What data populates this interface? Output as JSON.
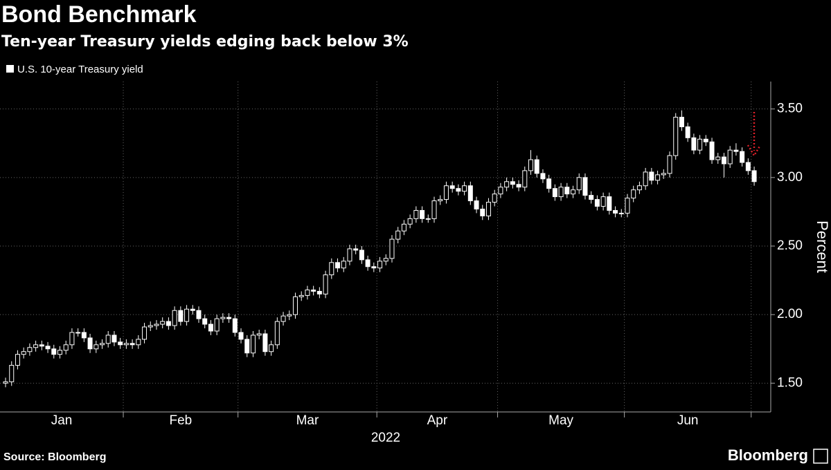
{
  "chart_data": {
    "type": "candlestick",
    "title": "Bond Benchmark",
    "subtitle": "Ten-year Treasury yields edging back below 3%",
    "y_axis_label": "Percent",
    "x_axis_label": "2022",
    "source": "Source: Bloomberg",
    "brand": "Bloomberg",
    "x_labels": [
      "Jan",
      "Feb",
      "Mar",
      "Apr",
      "May",
      "Jun"
    ],
    "xlim": [
      -0.92,
      126.4
    ],
    "xticks": [
      19.5,
      38.5,
      61.5,
      81.5,
      102.5,
      123.5
    ],
    "ylim": [
      1.29,
      3.7
    ],
    "yticks": [
      {
        "value": 1.5,
        "label": "1.50"
      },
      {
        "value": 2,
        "label": "2.00"
      },
      {
        "value": 2.5,
        "label": "2.50"
      },
      {
        "value": 3,
        "label": "3.00"
      },
      {
        "value": 3.5,
        "label": "3.50"
      }
    ],
    "grid": true,
    "series": [
      {
        "name": "U.S. 10-year Treasury yield",
        "color": "#ffffff",
        "open": [
          1.5,
          1.51,
          1.63,
          1.71,
          1.73,
          1.76,
          1.78,
          1.77,
          1.75,
          1.71,
          1.74,
          1.78,
          1.87,
          1.87,
          1.83,
          1.75,
          1.78,
          1.79,
          1.85,
          1.8,
          1.78,
          1.79,
          1.78,
          1.82,
          1.91,
          1.92,
          1.93,
          1.95,
          1.92,
          2.03,
          1.95,
          2.04,
          2.03,
          1.97,
          1.93,
          1.88,
          1.97,
          1.98,
          1.97,
          1.87,
          1.82,
          1.72,
          1.85,
          1.86,
          1.73,
          1.78,
          1.95,
          1.99,
          2.0,
          2.13,
          2.14,
          2.18,
          2.17,
          2.15,
          2.29,
          2.38,
          2.34,
          2.39,
          2.48,
          2.47,
          2.4,
          2.35,
          2.34,
          2.39,
          2.41,
          2.55,
          2.61,
          2.66,
          2.7,
          2.76,
          2.7,
          2.7,
          2.83,
          2.84,
          2.94,
          2.92,
          2.9,
          2.94,
          2.83,
          2.77,
          2.72,
          2.82,
          2.88,
          2.93,
          2.97,
          2.95,
          2.93,
          3.05,
          3.13,
          3.03,
          2.99,
          2.92,
          2.86,
          2.93,
          2.88,
          2.91,
          3.0,
          2.87,
          2.84,
          2.79,
          2.86,
          2.76,
          2.74,
          2.74,
          2.85,
          2.91,
          2.94,
          3.04,
          2.98,
          3.02,
          3.03,
          3.16,
          3.44,
          3.37,
          3.29,
          3.2,
          3.28,
          3.26,
          3.13,
          3.15,
          3.1,
          3.2,
          3.19,
          3.11,
          3.05
        ],
        "high": [
          1.54,
          1.66,
          1.74,
          1.76,
          1.79,
          1.81,
          1.81,
          1.8,
          1.78,
          1.77,
          1.81,
          1.9,
          1.9,
          1.9,
          1.86,
          1.81,
          1.82,
          1.88,
          1.88,
          1.83,
          1.82,
          1.82,
          1.85,
          1.94,
          1.95,
          1.96,
          1.98,
          1.98,
          2.06,
          2.06,
          2.07,
          2.07,
          2.06,
          2.0,
          1.96,
          2.0,
          2.01,
          2.01,
          2.0,
          1.9,
          1.85,
          1.88,
          1.89,
          1.89,
          1.81,
          1.98,
          2.02,
          2.03,
          2.16,
          2.17,
          2.21,
          2.21,
          2.2,
          2.32,
          2.41,
          2.41,
          2.42,
          2.51,
          2.51,
          2.5,
          2.43,
          2.38,
          2.42,
          2.44,
          2.58,
          2.64,
          2.69,
          2.73,
          2.79,
          2.79,
          2.73,
          2.86,
          2.87,
          2.97,
          2.97,
          2.95,
          2.97,
          2.97,
          2.86,
          2.8,
          2.85,
          2.91,
          2.96,
          3.0,
          3.0,
          2.98,
          3.08,
          3.2,
          3.16,
          3.06,
          3.02,
          2.95,
          2.96,
          2.96,
          2.94,
          3.03,
          3.03,
          2.9,
          2.87,
          2.89,
          2.89,
          2.79,
          2.77,
          2.88,
          2.94,
          2.97,
          3.07,
          3.07,
          3.05,
          3.06,
          3.19,
          3.47,
          3.49,
          3.4,
          3.32,
          3.31,
          3.31,
          3.29,
          3.18,
          3.18,
          3.23,
          3.25,
          3.22,
          3.14,
          3.08
        ],
        "low": [
          1.47,
          1.48,
          1.6,
          1.68,
          1.7,
          1.73,
          1.74,
          1.72,
          1.68,
          1.68,
          1.71,
          1.75,
          1.84,
          1.8,
          1.72,
          1.72,
          1.75,
          1.76,
          1.77,
          1.75,
          1.75,
          1.75,
          1.75,
          1.79,
          1.88,
          1.89,
          1.9,
          1.89,
          1.89,
          1.92,
          1.92,
          2.0,
          1.94,
          1.9,
          1.85,
          1.85,
          1.94,
          1.94,
          1.84,
          1.79,
          1.69,
          1.69,
          1.82,
          1.7,
          1.7,
          1.75,
          1.92,
          1.96,
          1.97,
          2.1,
          2.11,
          2.14,
          2.12,
          2.12,
          2.26,
          2.31,
          2.31,
          2.36,
          2.44,
          2.37,
          2.32,
          2.31,
          2.31,
          2.36,
          2.38,
          2.52,
          2.58,
          2.63,
          2.67,
          2.67,
          2.67,
          2.67,
          2.8,
          2.81,
          2.89,
          2.87,
          2.87,
          2.8,
          2.74,
          2.69,
          2.69,
          2.79,
          2.85,
          2.9,
          2.92,
          2.9,
          2.9,
          3.02,
          3.0,
          2.96,
          2.89,
          2.83,
          2.83,
          2.85,
          2.85,
          2.88,
          2.84,
          2.81,
          2.76,
          2.76,
          2.73,
          2.71,
          2.71,
          2.71,
          2.82,
          2.88,
          2.91,
          2.95,
          2.95,
          2.99,
          3.0,
          3.13,
          3.34,
          3.26,
          3.17,
          3.17,
          3.23,
          3.1,
          3.1,
          3.0,
          3.07,
          3.16,
          3.08,
          3.02,
          2.94
        ],
        "close": [
          1.51,
          1.63,
          1.71,
          1.73,
          1.76,
          1.78,
          1.77,
          1.75,
          1.71,
          1.74,
          1.78,
          1.87,
          1.87,
          1.83,
          1.75,
          1.78,
          1.79,
          1.85,
          1.8,
          1.78,
          1.79,
          1.78,
          1.82,
          1.91,
          1.92,
          1.93,
          1.95,
          1.92,
          2.03,
          1.95,
          2.04,
          2.03,
          1.97,
          1.93,
          1.88,
          1.97,
          1.98,
          1.97,
          1.87,
          1.82,
          1.72,
          1.85,
          1.86,
          1.73,
          1.78,
          1.95,
          1.99,
          2.0,
          2.13,
          2.14,
          2.18,
          2.17,
          2.15,
          2.29,
          2.38,
          2.34,
          2.39,
          2.48,
          2.47,
          2.4,
          2.35,
          2.34,
          2.39,
          2.41,
          2.55,
          2.61,
          2.66,
          2.7,
          2.76,
          2.7,
          2.7,
          2.83,
          2.84,
          2.94,
          2.92,
          2.9,
          2.94,
          2.83,
          2.77,
          2.72,
          2.82,
          2.88,
          2.93,
          2.97,
          2.95,
          2.93,
          3.05,
          3.13,
          3.03,
          2.99,
          2.92,
          2.86,
          2.93,
          2.88,
          2.91,
          3.0,
          2.87,
          2.84,
          2.79,
          2.86,
          2.76,
          2.74,
          2.74,
          2.85,
          2.91,
          2.94,
          3.04,
          2.98,
          3.02,
          3.03,
          3.16,
          3.44,
          3.37,
          3.29,
          3.2,
          3.28,
          3.26,
          3.13,
          3.15,
          3.1,
          3.2,
          3.19,
          3.11,
          3.05,
          2.97
        ]
      }
    ]
  }
}
